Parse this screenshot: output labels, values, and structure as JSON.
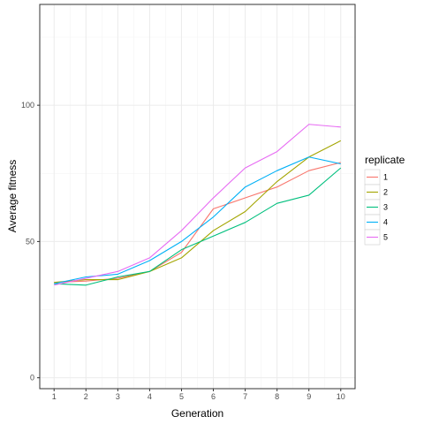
{
  "chart_data": {
    "type": "line",
    "title": "",
    "xlabel": "Generation",
    "ylabel": "Average fitness",
    "x": [
      1,
      2,
      3,
      4,
      5,
      6,
      7,
      8,
      9,
      10
    ],
    "xlim": [
      0.55,
      10.45
    ],
    "ylim": [
      -4,
      137
    ],
    "x_ticks": [
      1,
      2,
      3,
      4,
      5,
      6,
      7,
      8,
      9,
      10
    ],
    "y_ticks": [
      0,
      50,
      100
    ],
    "grid": true,
    "legend": {
      "title": "replicate",
      "placement": "right"
    },
    "series": [
      {
        "name": "1",
        "color": "#F8766D",
        "values": [
          35,
          35.5,
          36.5,
          39,
          46,
          62,
          66,
          70,
          76,
          79
        ]
      },
      {
        "name": "2",
        "color": "#A3A500",
        "values": [
          35,
          36,
          36,
          39,
          44,
          54,
          61,
          72,
          81,
          87
        ]
      },
      {
        "name": "3",
        "color": "#00BF7D",
        "values": [
          34.5,
          34,
          37,
          39,
          47,
          52,
          57,
          64,
          67,
          77
        ]
      },
      {
        "name": "4",
        "color": "#00B0F6",
        "values": [
          34.5,
          37,
          38,
          43,
          50,
          59,
          70,
          76,
          81,
          78.5
        ]
      },
      {
        "name": "5",
        "color": "#E76BF3",
        "values": [
          34,
          36.5,
          39,
          44,
          54,
          66,
          77,
          83,
          93,
          92
        ]
      }
    ]
  }
}
